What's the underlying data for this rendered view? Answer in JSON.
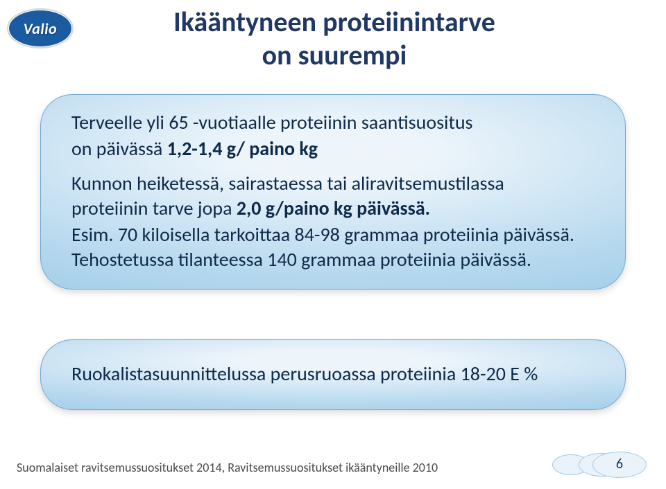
{
  "logo": {
    "text": "Valio"
  },
  "colors": {
    "title": "#1f3864",
    "body_text": "#0d2a4a",
    "footnote": "#4a4a4a",
    "bubble_top": "#edf5fb",
    "bubble_mid": "#b6d8ee",
    "bubble_bot": "#84bee2",
    "bubble_border": "#6fa8d1",
    "pagenum_oval_stroke": "#9acbe8",
    "pagenum_oval_fill": "#eaf3fa",
    "logo_bg": "#1b5ba0"
  },
  "typography": {
    "title_fontsize": 40,
    "body_fontsize": 28,
    "bubble2_fontsize": 28,
    "footnote_fontsize": 18,
    "pagenum_fontsize": 20
  },
  "title": {
    "line1": "Ikääntyneen proteiinintarve",
    "line2": "on suurempi"
  },
  "bubble1": {
    "p1_pre": "Terveelle yli 65 -vuotiaalle proteiinin saantisuositus",
    "p2_pre": "on päivässä ",
    "p2_bold": "1,2-1,4 g/ paino kg",
    "p3_pre": "Kunnon heiketessä, sairastaessa tai aliravitsemustilassa",
    "p3_post": "proteiinin tarve jopa ",
    "p3_bold": "2,0 g/paino kg  päivässä.",
    "p4": "Esim. 70 kiloisella tarkoittaa 84-98 grammaa proteiinia  päivässä. Tehostetussa tilanteessa 140 grammaa proteiinia päivässä."
  },
  "bubble2": {
    "text": "Ruokalistasuunnittelussa perusruoassa proteiinia 18-20 E %"
  },
  "footnote": "Suomalaiset ravitsemussuositukset 2014, Ravitsemussuositukset ikääntyneille 2010",
  "page_number": "6"
}
